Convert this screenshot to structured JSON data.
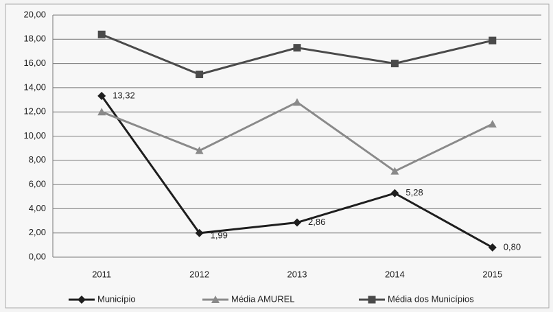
{
  "chart_data": {
    "type": "line",
    "categories": [
      "2011",
      "2012",
      "2013",
      "2014",
      "2015"
    ],
    "series": [
      {
        "name": "Município",
        "color": "#1e1e1e",
        "marker": "diamond",
        "values": [
          13.32,
          1.99,
          2.86,
          5.28,
          0.8
        ],
        "value_labels": [
          "13,32",
          "1,99",
          "2,86",
          "5,28",
          "0,80"
        ]
      },
      {
        "name": "Média AMUREL",
        "color": "#8a8a8a",
        "marker": "triangle",
        "values": [
          12.0,
          8.8,
          12.8,
          7.1,
          11.0
        ]
      },
      {
        "name": "Média dos Municípios",
        "color": "#4a4a4a",
        "marker": "square",
        "values": [
          18.4,
          15.1,
          17.3,
          16.0,
          17.9
        ]
      }
    ],
    "ylim": [
      0,
      20
    ],
    "yticks": [
      {
        "value": 0,
        "label": "0,00"
      },
      {
        "value": 2,
        "label": "2,00"
      },
      {
        "value": 4,
        "label": "4,00"
      },
      {
        "value": 6,
        "label": "6,00"
      },
      {
        "value": 8,
        "label": "8,00"
      },
      {
        "value": 10,
        "label": "10,00"
      },
      {
        "value": 12,
        "label": "12,00"
      },
      {
        "value": 14,
        "label": "14,00"
      },
      {
        "value": 16,
        "label": "16,00"
      },
      {
        "value": 18,
        "label": "18,00"
      },
      {
        "value": 20,
        "label": "20,00"
      }
    ],
    "grid": true,
    "legend": "bottom"
  }
}
